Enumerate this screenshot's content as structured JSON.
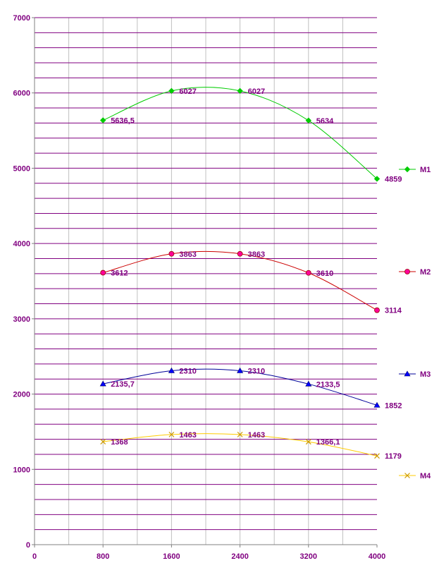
{
  "chart_data": {
    "type": "line",
    "title": "",
    "xlabel": "",
    "ylabel": "",
    "xlim": [
      0,
      4000
    ],
    "ylim": [
      0,
      7000
    ],
    "x_ticks": [
      0,
      800,
      1600,
      2400,
      3200,
      4000
    ],
    "x_tick_labels": [
      "0",
      "800",
      "1600",
      "2400",
      "3200",
      "4000"
    ],
    "y_ticks": [
      0,
      1000,
      2000,
      3000,
      4000,
      5000,
      6000,
      7000
    ],
    "y_tick_labels": [
      "0",
      "1000",
      "2000",
      "3000",
      "4000",
      "5000",
      "6000",
      "7000"
    ],
    "grid": true,
    "legend_position": "right",
    "axis_color": "#800080",
    "label_color": "#800080",
    "series": [
      {
        "name": "M1",
        "color": "#00cc00",
        "marker": "diamond",
        "points": [
          {
            "x": 800,
            "y": 5636.5,
            "label": "5636,5"
          },
          {
            "x": 1600,
            "y": 6027,
            "label": "6027"
          },
          {
            "x": 2400,
            "y": 6027,
            "label": "6027"
          },
          {
            "x": 3200,
            "y": 5634,
            "label": "5634"
          },
          {
            "x": 4000,
            "y": 4859,
            "label": "4859"
          }
        ]
      },
      {
        "name": "M2",
        "color": "#cc0000",
        "marker_color": "#ff0099",
        "marker": "circle",
        "points": [
          {
            "x": 800,
            "y": 3612,
            "label": "3612"
          },
          {
            "x": 1600,
            "y": 3863,
            "label": "3863"
          },
          {
            "x": 2400,
            "y": 3863,
            "label": "3863"
          },
          {
            "x": 3200,
            "y": 3610,
            "label": "3610"
          },
          {
            "x": 4000,
            "y": 3114,
            "label": "3114"
          }
        ]
      },
      {
        "name": "M3",
        "color": "#000099",
        "marker_color": "#0000ff",
        "marker": "triangle",
        "points": [
          {
            "x": 800,
            "y": 2135.7,
            "label": "2135,7"
          },
          {
            "x": 1600,
            "y": 2310,
            "label": "2310"
          },
          {
            "x": 2400,
            "y": 2310,
            "label": "2310"
          },
          {
            "x": 3200,
            "y": 2133.5,
            "label": "2133,5"
          },
          {
            "x": 4000,
            "y": 1852,
            "label": "1852"
          }
        ]
      },
      {
        "name": "M4",
        "color": "#ffcc00",
        "marker_color": "#cc9900",
        "marker": "x",
        "points": [
          {
            "x": 800,
            "y": 1368,
            "label": "1368"
          },
          {
            "x": 1600,
            "y": 1463,
            "label": "1463"
          },
          {
            "x": 2400,
            "y": 1463,
            "label": "1463"
          },
          {
            "x": 3200,
            "y": 1366.1,
            "label": "1366,1"
          },
          {
            "x": 4000,
            "y": 1179,
            "label": "1179"
          }
        ]
      }
    ]
  }
}
